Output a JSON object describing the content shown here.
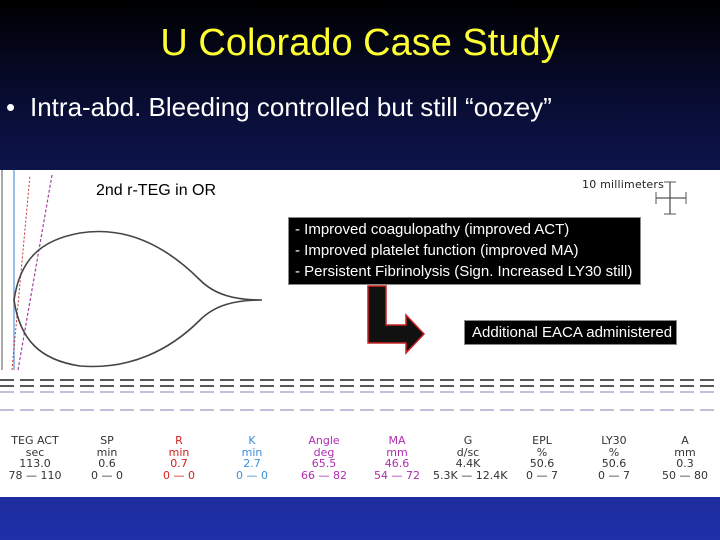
{
  "slide": {
    "title": "U Colorado Case Study",
    "bullet_symbol": "•",
    "bullet_text": "Intra-abd. Bleeding controlled but still “oozey”"
  },
  "teg": {
    "label": "2nd r-TEG in OR",
    "scale_label": "10 millimeters",
    "findings": [
      "- Improved coagulopathy (improved ACT)",
      "- Improved platelet function (improved MA)",
      "- Persistent Fibrinolysis (Sign. Increased LY30 still)"
    ],
    "action": "Additional EACA administered",
    "params": [
      {
        "name": "TEG ACT",
        "unit": "sec",
        "value": "113.0",
        "range": "78 — 110",
        "color": "#333333"
      },
      {
        "name": "SP",
        "unit": "min",
        "value": "0.6",
        "range": "0 — 0",
        "color": "#333333"
      },
      {
        "name": "R",
        "unit": "min",
        "value": "0.7",
        "range": "0 — 0",
        "color": "#d42020"
      },
      {
        "name": "K",
        "unit": "min",
        "value": "2.7",
        "range": "0 — 0",
        "color": "#3a8fd8"
      },
      {
        "name": "Angle",
        "unit": "deg",
        "value": "65.5",
        "range": "66 — 82",
        "color": "#b02cb0"
      },
      {
        "name": "MA",
        "unit": "mm",
        "value": "46.6",
        "range": "54 — 72",
        "color": "#b02cb0"
      },
      {
        "name": "G",
        "unit": "d/sc",
        "value": "4.4K",
        "range": "5.3K — 12.4K",
        "color": "#333333"
      },
      {
        "name": "EPL",
        "unit": "%",
        "value": "50.6",
        "range": "0 — 7",
        "color": "#333333"
      },
      {
        "name": "LY30",
        "unit": "%",
        "value": "50.6",
        "range": "0 — 7",
        "color": "#333333"
      },
      {
        "name": "A",
        "unit": "mm",
        "value": "0.3",
        "range": "50 — 80",
        "color": "#333333"
      }
    ]
  },
  "colors": {
    "title": "#ffff33",
    "box_bg": "#000000",
    "arrow": "#000000",
    "arrow_outline": "#cc2222"
  }
}
